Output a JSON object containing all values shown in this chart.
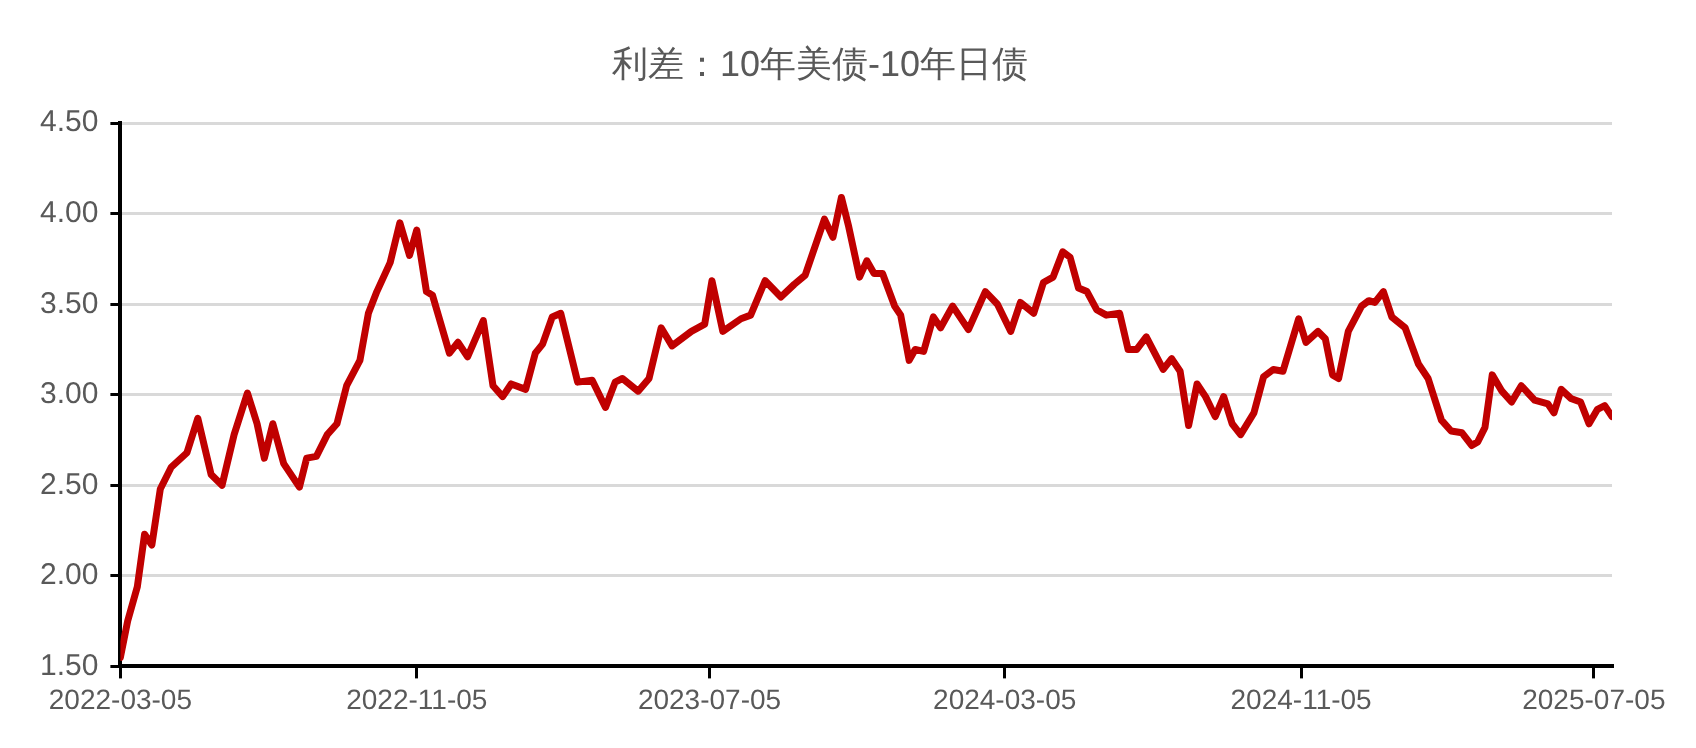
{
  "chart_data": {
    "type": "line",
    "title": "利差：10年美债-10年日债",
    "x": [
      "2022-03-05",
      "2022-03-11",
      "2022-03-19",
      "2022-03-25",
      "2022-03-31",
      "2022-04-07",
      "2022-04-16",
      "2022-04-29",
      "2022-05-08",
      "2022-05-19",
      "2022-05-28",
      "2022-06-07",
      "2022-06-18",
      "2022-06-26",
      "2022-07-02",
      "2022-07-09",
      "2022-07-18",
      "2022-07-31",
      "2022-08-06",
      "2022-08-14",
      "2022-08-23",
      "2022-08-31",
      "2022-09-08",
      "2022-09-19",
      "2022-09-26",
      "2022-10-03",
      "2022-10-14",
      "2022-10-22",
      "2022-10-30",
      "2022-11-05",
      "2022-11-13",
      "2022-11-18",
      "2022-12-02",
      "2022-12-09",
      "2022-12-17",
      "2022-12-30",
      "2023-01-07",
      "2023-01-15",
      "2023-01-22",
      "2023-02-03",
      "2023-02-11",
      "2023-02-17",
      "2023-02-25",
      "2023-03-04",
      "2023-03-18",
      "2023-03-30",
      "2023-04-10",
      "2023-04-18",
      "2023-04-24",
      "2023-05-07",
      "2023-05-16",
      "2023-05-26",
      "2023-06-04",
      "2023-06-20",
      "2023-07-01",
      "2023-07-07",
      "2023-07-16",
      "2023-07-31",
      "2023-08-08",
      "2023-08-20",
      "2023-09-02",
      "2023-09-13",
      "2023-09-22",
      "2023-10-08",
      "2023-10-15",
      "2023-10-22",
      "2023-10-28",
      "2023-11-06",
      "2023-11-12",
      "2023-11-18",
      "2023-11-25",
      "2023-12-05",
      "2023-12-10",
      "2023-12-17",
      "2023-12-22",
      "2023-12-29",
      "2024-01-06",
      "2024-01-12",
      "2024-01-22",
      "2024-02-04",
      "2024-02-18",
      "2024-02-28",
      "2024-03-10",
      "2024-03-18",
      "2024-03-29",
      "2024-04-06",
      "2024-04-14",
      "2024-04-22",
      "2024-04-28",
      "2024-05-05",
      "2024-05-12",
      "2024-05-20",
      "2024-05-28",
      "2024-06-08",
      "2024-06-15",
      "2024-06-22",
      "2024-06-30",
      "2024-07-14",
      "2024-07-21",
      "2024-07-28",
      "2024-08-04",
      "2024-08-11",
      "2024-08-18",
      "2024-08-26",
      "2024-09-02",
      "2024-09-09",
      "2024-09-16",
      "2024-09-27",
      "2024-10-05",
      "2024-10-13",
      "2024-10-21",
      "2024-11-03",
      "2024-11-09",
      "2024-11-19",
      "2024-11-25",
      "2024-12-01",
      "2024-12-06",
      "2024-12-14",
      "2024-12-25",
      "2024-12-31",
      "2025-01-05",
      "2025-01-12",
      "2025-01-19",
      "2025-01-30",
      "2025-02-10",
      "2025-02-18",
      "2025-03-01",
      "2025-03-09",
      "2025-03-18",
      "2025-03-26",
      "2025-03-31",
      "2025-04-06",
      "2025-04-12",
      "2025-04-20",
      "2025-04-28",
      "2025-05-06",
      "2025-05-17",
      "2025-05-28",
      "2025-06-02",
      "2025-06-08",
      "2025-06-16",
      "2025-06-24",
      "2025-07-01",
      "2025-07-08",
      "2025-07-14",
      "2025-07-20"
    ],
    "series": [
      {
        "color": "#c00000",
        "values": [
          1.55,
          1.75,
          1.94,
          2.23,
          2.17,
          2.48,
          2.6,
          2.68,
          2.87,
          2.56,
          2.5,
          2.78,
          3.01,
          2.84,
          2.65,
          2.84,
          2.62,
          2.49,
          2.65,
          2.66,
          2.78,
          2.84,
          3.05,
          3.19,
          3.45,
          3.57,
          3.73,
          3.95,
          3.77,
          3.91,
          3.57,
          3.55,
          3.23,
          3.29,
          3.21,
          3.41,
          3.05,
          2.99,
          3.06,
          3.03,
          3.23,
          3.28,
          3.43,
          3.45,
          3.07,
          3.08,
          2.93,
          3.07,
          3.09,
          3.02,
          3.09,
          3.37,
          3.27,
          3.35,
          3.39,
          3.63,
          3.35,
          3.42,
          3.44,
          3.63,
          3.54,
          3.61,
          3.66,
          3.97,
          3.87,
          4.09,
          3.93,
          3.65,
          3.74,
          3.67,
          3.67,
          3.49,
          3.44,
          3.19,
          3.25,
          3.24,
          3.43,
          3.37,
          3.49,
          3.36,
          3.57,
          3.5,
          3.35,
          3.51,
          3.45,
          3.62,
          3.65,
          3.79,
          3.76,
          3.59,
          3.57,
          3.47,
          3.44,
          3.45,
          3.25,
          3.25,
          3.32,
          3.14,
          3.2,
          3.13,
          2.83,
          3.06,
          2.99,
          2.88,
          2.99,
          2.84,
          2.78,
          2.9,
          3.1,
          3.14,
          3.13,
          3.42,
          3.29,
          3.35,
          3.31,
          3.11,
          3.09,
          3.35,
          3.49,
          3.52,
          3.51,
          3.57,
          3.43,
          3.37,
          3.17,
          3.09,
          2.86,
          2.8,
          2.79,
          2.72,
          2.74,
          2.82,
          3.11,
          3.02,
          2.96,
          3.05,
          2.97,
          2.95,
          2.9,
          3.03,
          2.98,
          2.96,
          2.84,
          2.92,
          2.94,
          2.88
        ]
      }
    ],
    "xlim": [
      "2022-03-05",
      "2025-07-20"
    ],
    "xticks": [
      "2022-03-05",
      "2022-11-05",
      "2023-07-05",
      "2024-03-05",
      "2024-11-05",
      "2025-07-05"
    ],
    "ylim": [
      1.5,
      4.5
    ],
    "yticks": [
      {
        "value": 1.5,
        "label": "1.50"
      },
      {
        "value": 2,
        "label": "2.00"
      },
      {
        "value": 2.5,
        "label": "2.50"
      },
      {
        "value": 3,
        "label": "3.00"
      },
      {
        "value": 3.5,
        "label": "3.50"
      },
      {
        "value": 4,
        "label": "4.00"
      },
      {
        "value": 4.5,
        "label": "4.50"
      }
    ],
    "grid": "y",
    "legend": false,
    "marker": "none",
    "line_style": "solid"
  }
}
